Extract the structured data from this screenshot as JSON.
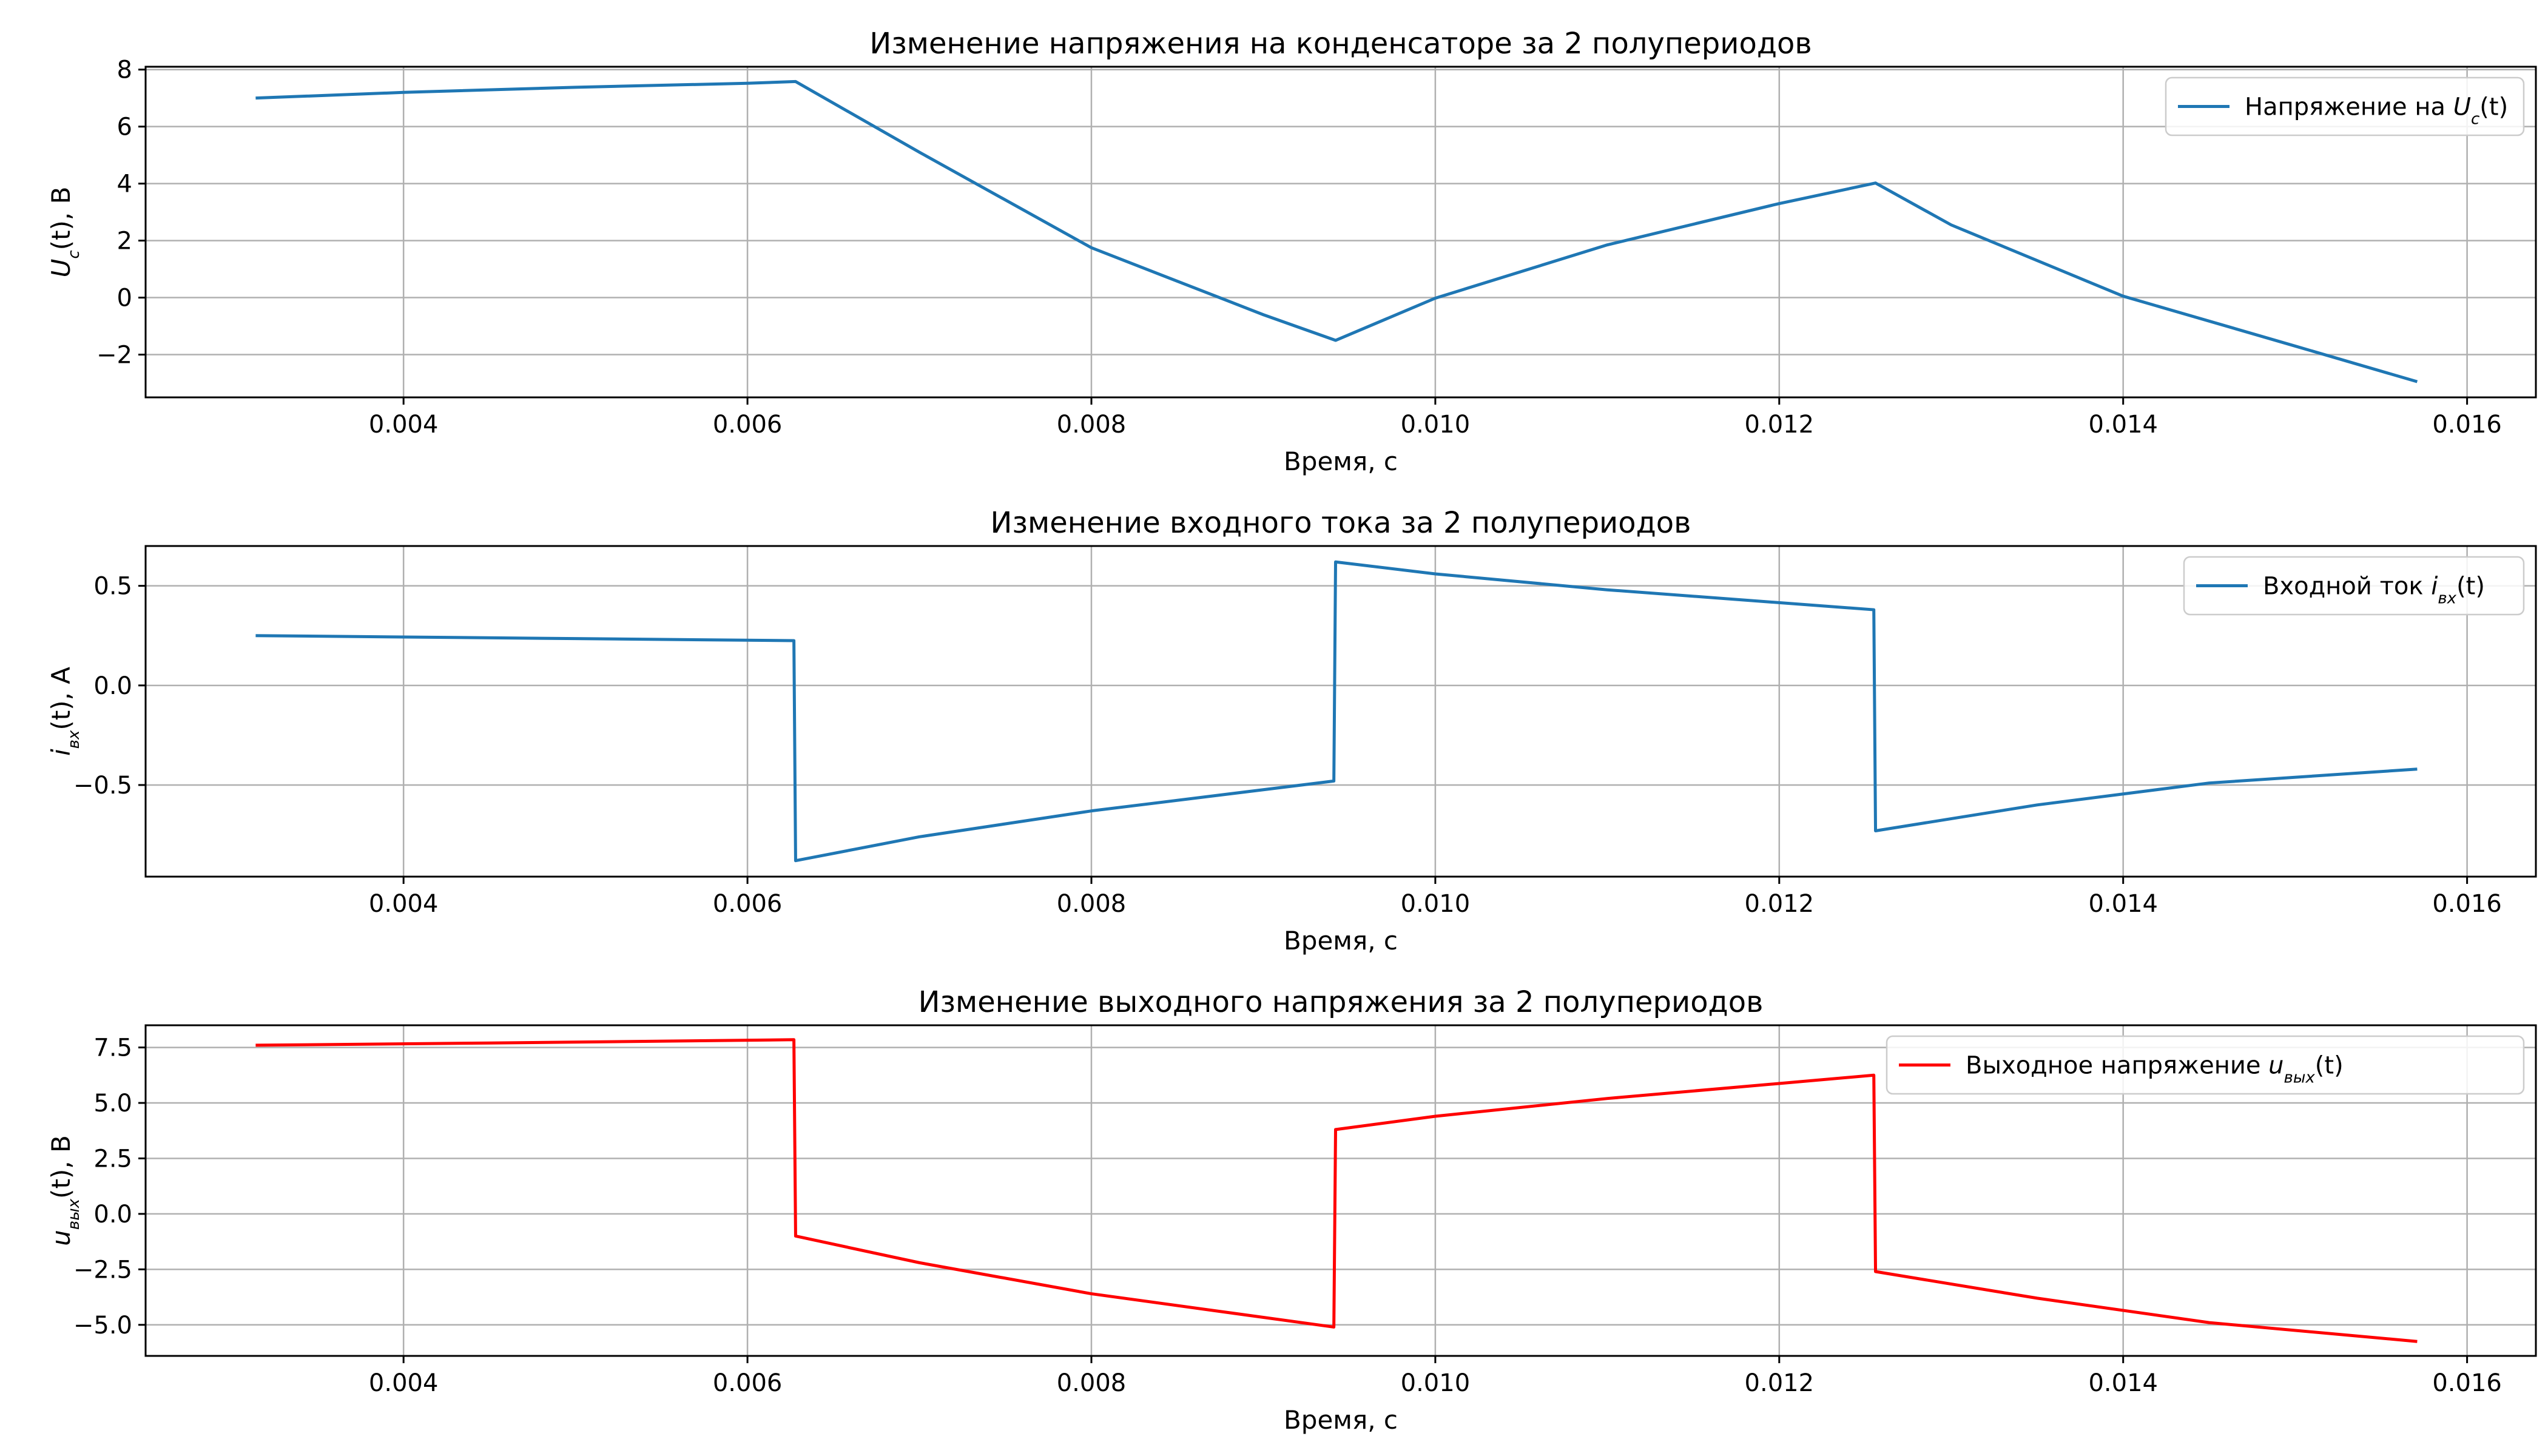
{
  "chart_data": [
    {
      "type": "line",
      "title": "Изменение напряжения на конденсаторе за 2 полупериодов",
      "xlabel": "Время, с",
      "ylabel": {
        "main": "U",
        "sub": "c",
        "rest": "(t), В"
      },
      "xlim": [
        0.0025,
        0.0164
      ],
      "ylim": [
        -3.5,
        8.1
      ],
      "xticks": [
        0.004,
        0.006,
        0.008,
        0.01,
        0.012,
        0.014,
        0.016
      ],
      "xtick_labels": [
        "0.004",
        "0.006",
        "0.008",
        "0.010",
        "0.012",
        "0.014",
        "0.016"
      ],
      "yticks": [
        -2,
        0,
        2,
        4,
        6,
        8
      ],
      "ytick_labels": [
        "−2",
        "0",
        "2",
        "4",
        "6",
        "8"
      ],
      "grid": true,
      "legend_position": "top-right",
      "series": [
        {
          "name": {
            "main": "Напряжение на ",
            "var": "U",
            "sub": "c",
            "rest": "(t)"
          },
          "color": "#1f77b4",
          "x": [
            0.00314,
            0.004,
            0.005,
            0.006,
            0.00628,
            0.007,
            0.008,
            0.009,
            0.00942,
            0.01,
            0.011,
            0.012,
            0.01256,
            0.013,
            0.014,
            0.015,
            0.01571
          ],
          "y": [
            7.0,
            7.2,
            7.38,
            7.52,
            7.58,
            5.1,
            1.75,
            -0.6,
            -1.5,
            -0.02,
            1.85,
            3.3,
            4.02,
            2.55,
            0.05,
            -1.7,
            -2.95
          ]
        }
      ]
    },
    {
      "type": "line",
      "title": "Изменение входного тока за 2 полупериодов",
      "xlabel": "Время, с",
      "ylabel": {
        "main": "i",
        "sub": "вх",
        "rest": "(t), А"
      },
      "xlim": [
        0.0025,
        0.0164
      ],
      "ylim": [
        -0.96,
        0.7
      ],
      "xticks": [
        0.004,
        0.006,
        0.008,
        0.01,
        0.012,
        0.014,
        0.016
      ],
      "xtick_labels": [
        "0.004",
        "0.006",
        "0.008",
        "0.010",
        "0.012",
        "0.014",
        "0.016"
      ],
      "yticks": [
        -0.5,
        0.0,
        0.5
      ],
      "ytick_labels": [
        "−0.5",
        "0.0",
        "0.5"
      ],
      "grid": true,
      "legend_position": "top-right",
      "series": [
        {
          "name": {
            "main": "Входной ток ",
            "var": "i",
            "sub": "вх",
            "rest": "(t)"
          },
          "color": "#1f77b4",
          "x": [
            0.00314,
            0.005,
            0.00627,
            0.00628,
            0.007,
            0.008,
            0.00941,
            0.00942,
            0.01,
            0.011,
            0.01255,
            0.01256,
            0.0135,
            0.0145,
            0.01571
          ],
          "y": [
            0.25,
            0.235,
            0.225,
            -0.88,
            -0.76,
            -0.63,
            -0.48,
            0.62,
            0.56,
            0.48,
            0.38,
            -0.73,
            -0.6,
            -0.49,
            -0.42
          ]
        }
      ]
    },
    {
      "type": "line",
      "title": "Изменение выходного напряжения за 2 полупериодов",
      "xlabel": "Время, с",
      "ylabel": {
        "main": "u",
        "sub": "вых",
        "rest": "(t), В"
      },
      "xlim": [
        0.0025,
        0.0164
      ],
      "ylim": [
        -6.4,
        8.5
      ],
      "xticks": [
        0.004,
        0.006,
        0.008,
        0.01,
        0.012,
        0.014,
        0.016
      ],
      "xtick_labels": [
        "0.004",
        "0.006",
        "0.008",
        "0.010",
        "0.012",
        "0.014",
        "0.016"
      ],
      "yticks": [
        -5.0,
        -2.5,
        0.0,
        2.5,
        5.0,
        7.5
      ],
      "ytick_labels": [
        "−5.0",
        "−2.5",
        "0.0",
        "2.5",
        "5.0",
        "7.5"
      ],
      "grid": true,
      "legend_position": "top-right",
      "series": [
        {
          "name": {
            "main": "Выходное напряжение ",
            "var": "u",
            "sub": "вых",
            "rest": "(t)"
          },
          "color": "#ff0000",
          "x": [
            0.00314,
            0.0045,
            0.00627,
            0.00628,
            0.007,
            0.008,
            0.00941,
            0.00942,
            0.01,
            0.011,
            0.01255,
            0.01256,
            0.0135,
            0.0145,
            0.01571
          ],
          "y": [
            7.6,
            7.7,
            7.85,
            -1.0,
            -2.2,
            -3.6,
            -5.1,
            3.8,
            4.4,
            5.2,
            6.25,
            -2.6,
            -3.8,
            -4.9,
            -5.75
          ]
        }
      ]
    }
  ]
}
